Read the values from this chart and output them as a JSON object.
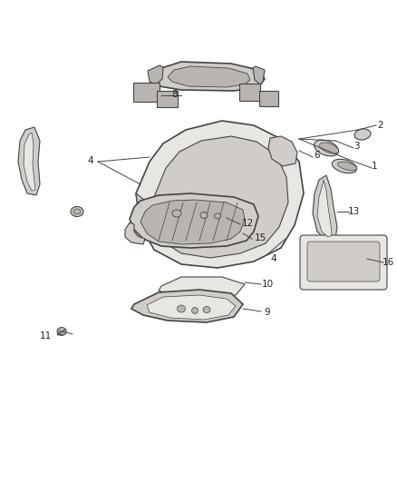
{
  "background_color": "#ffffff",
  "line_color": "#444444",
  "fill_light": "#e8e6e2",
  "fill_mid": "#d0cdc8",
  "fill_dark": "#b8b5b0",
  "label_fontsize": 7.5,
  "label_color": "#222222",
  "figsize": [
    4.38,
    5.33
  ],
  "dpi": 100
}
